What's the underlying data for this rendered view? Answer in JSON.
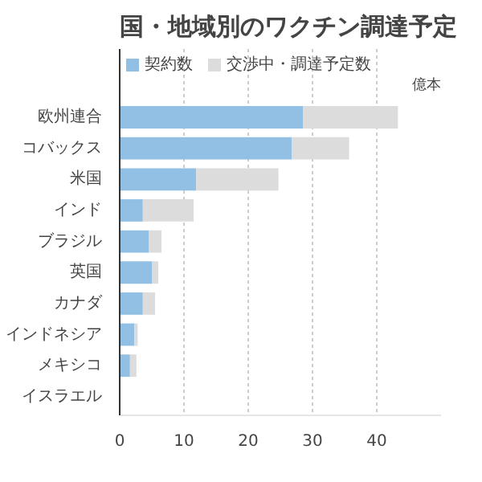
{
  "chart_data": {
    "type": "bar",
    "orientation": "horizontal",
    "stacked": true,
    "title": "国・地域別のワクチン調達予定",
    "xlabel": "億本",
    "categories": [
      "欧州連合",
      "コバックス",
      "米国",
      "インド",
      "ブラジル",
      "英国",
      "カナダ",
      "インドネシア",
      "メキシコ",
      "イスラエル"
    ],
    "series": [
      {
        "name": "契約数",
        "color": "#92c0e4",
        "values": [
          28.5,
          26.8,
          11.9,
          3.6,
          4.5,
          5.0,
          3.6,
          2.3,
          1.6,
          null
        ]
      },
      {
        "name": "交渉中・調達予定数",
        "color": "#dcdcdc",
        "values": [
          14.8,
          8.9,
          12.8,
          7.9,
          2.0,
          1.0,
          1.9,
          0.5,
          1.0,
          0
        ]
      }
    ],
    "xlim": [
      0,
      50
    ],
    "xticks": [
      0,
      10,
      20,
      30,
      40
    ],
    "grid": "x",
    "legend": "top left"
  }
}
